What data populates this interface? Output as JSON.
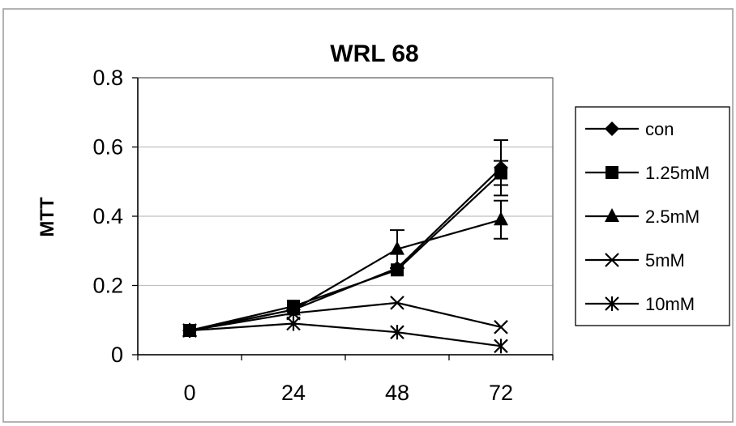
{
  "chart_data": {
    "type": "line",
    "title": "WRL 68",
    "xlabel": "",
    "ylabel": "MTT",
    "categories": [
      "0",
      "24",
      "48",
      "72"
    ],
    "ylim": [
      0,
      0.8
    ],
    "yticks": [
      "0",
      "0.2",
      "0.4",
      "0.6",
      "0.8"
    ],
    "grid": "horizontal",
    "legend_position": "right",
    "series": [
      {
        "name": "con",
        "marker": "diamond",
        "values": [
          0.07,
          0.13,
          0.25,
          0.54
        ],
        "errors": [
          0,
          0,
          0,
          0.08
        ]
      },
      {
        "name": "1.25mM",
        "marker": "square",
        "values": [
          0.07,
          0.14,
          0.245,
          0.525
        ],
        "errors": [
          0,
          0,
          0,
          0.035
        ]
      },
      {
        "name": "2.5mM",
        "marker": "triangle",
        "values": [
          0.07,
          0.13,
          0.305,
          0.39
        ],
        "errors": [
          0,
          0,
          0.055,
          0.055
        ]
      },
      {
        "name": "5mM",
        "marker": "x",
        "values": [
          0.07,
          0.12,
          0.15,
          0.08
        ],
        "errors": [
          0,
          0,
          0,
          0
        ]
      },
      {
        "name": "10mM",
        "marker": "asterisk",
        "values": [
          0.07,
          0.09,
          0.065,
          0.025
        ],
        "errors": [
          0,
          0,
          0,
          0
        ]
      }
    ],
    "colors": {
      "line": "#000000",
      "grid": "#c0c0c0",
      "background": "#ffffff"
    }
  }
}
